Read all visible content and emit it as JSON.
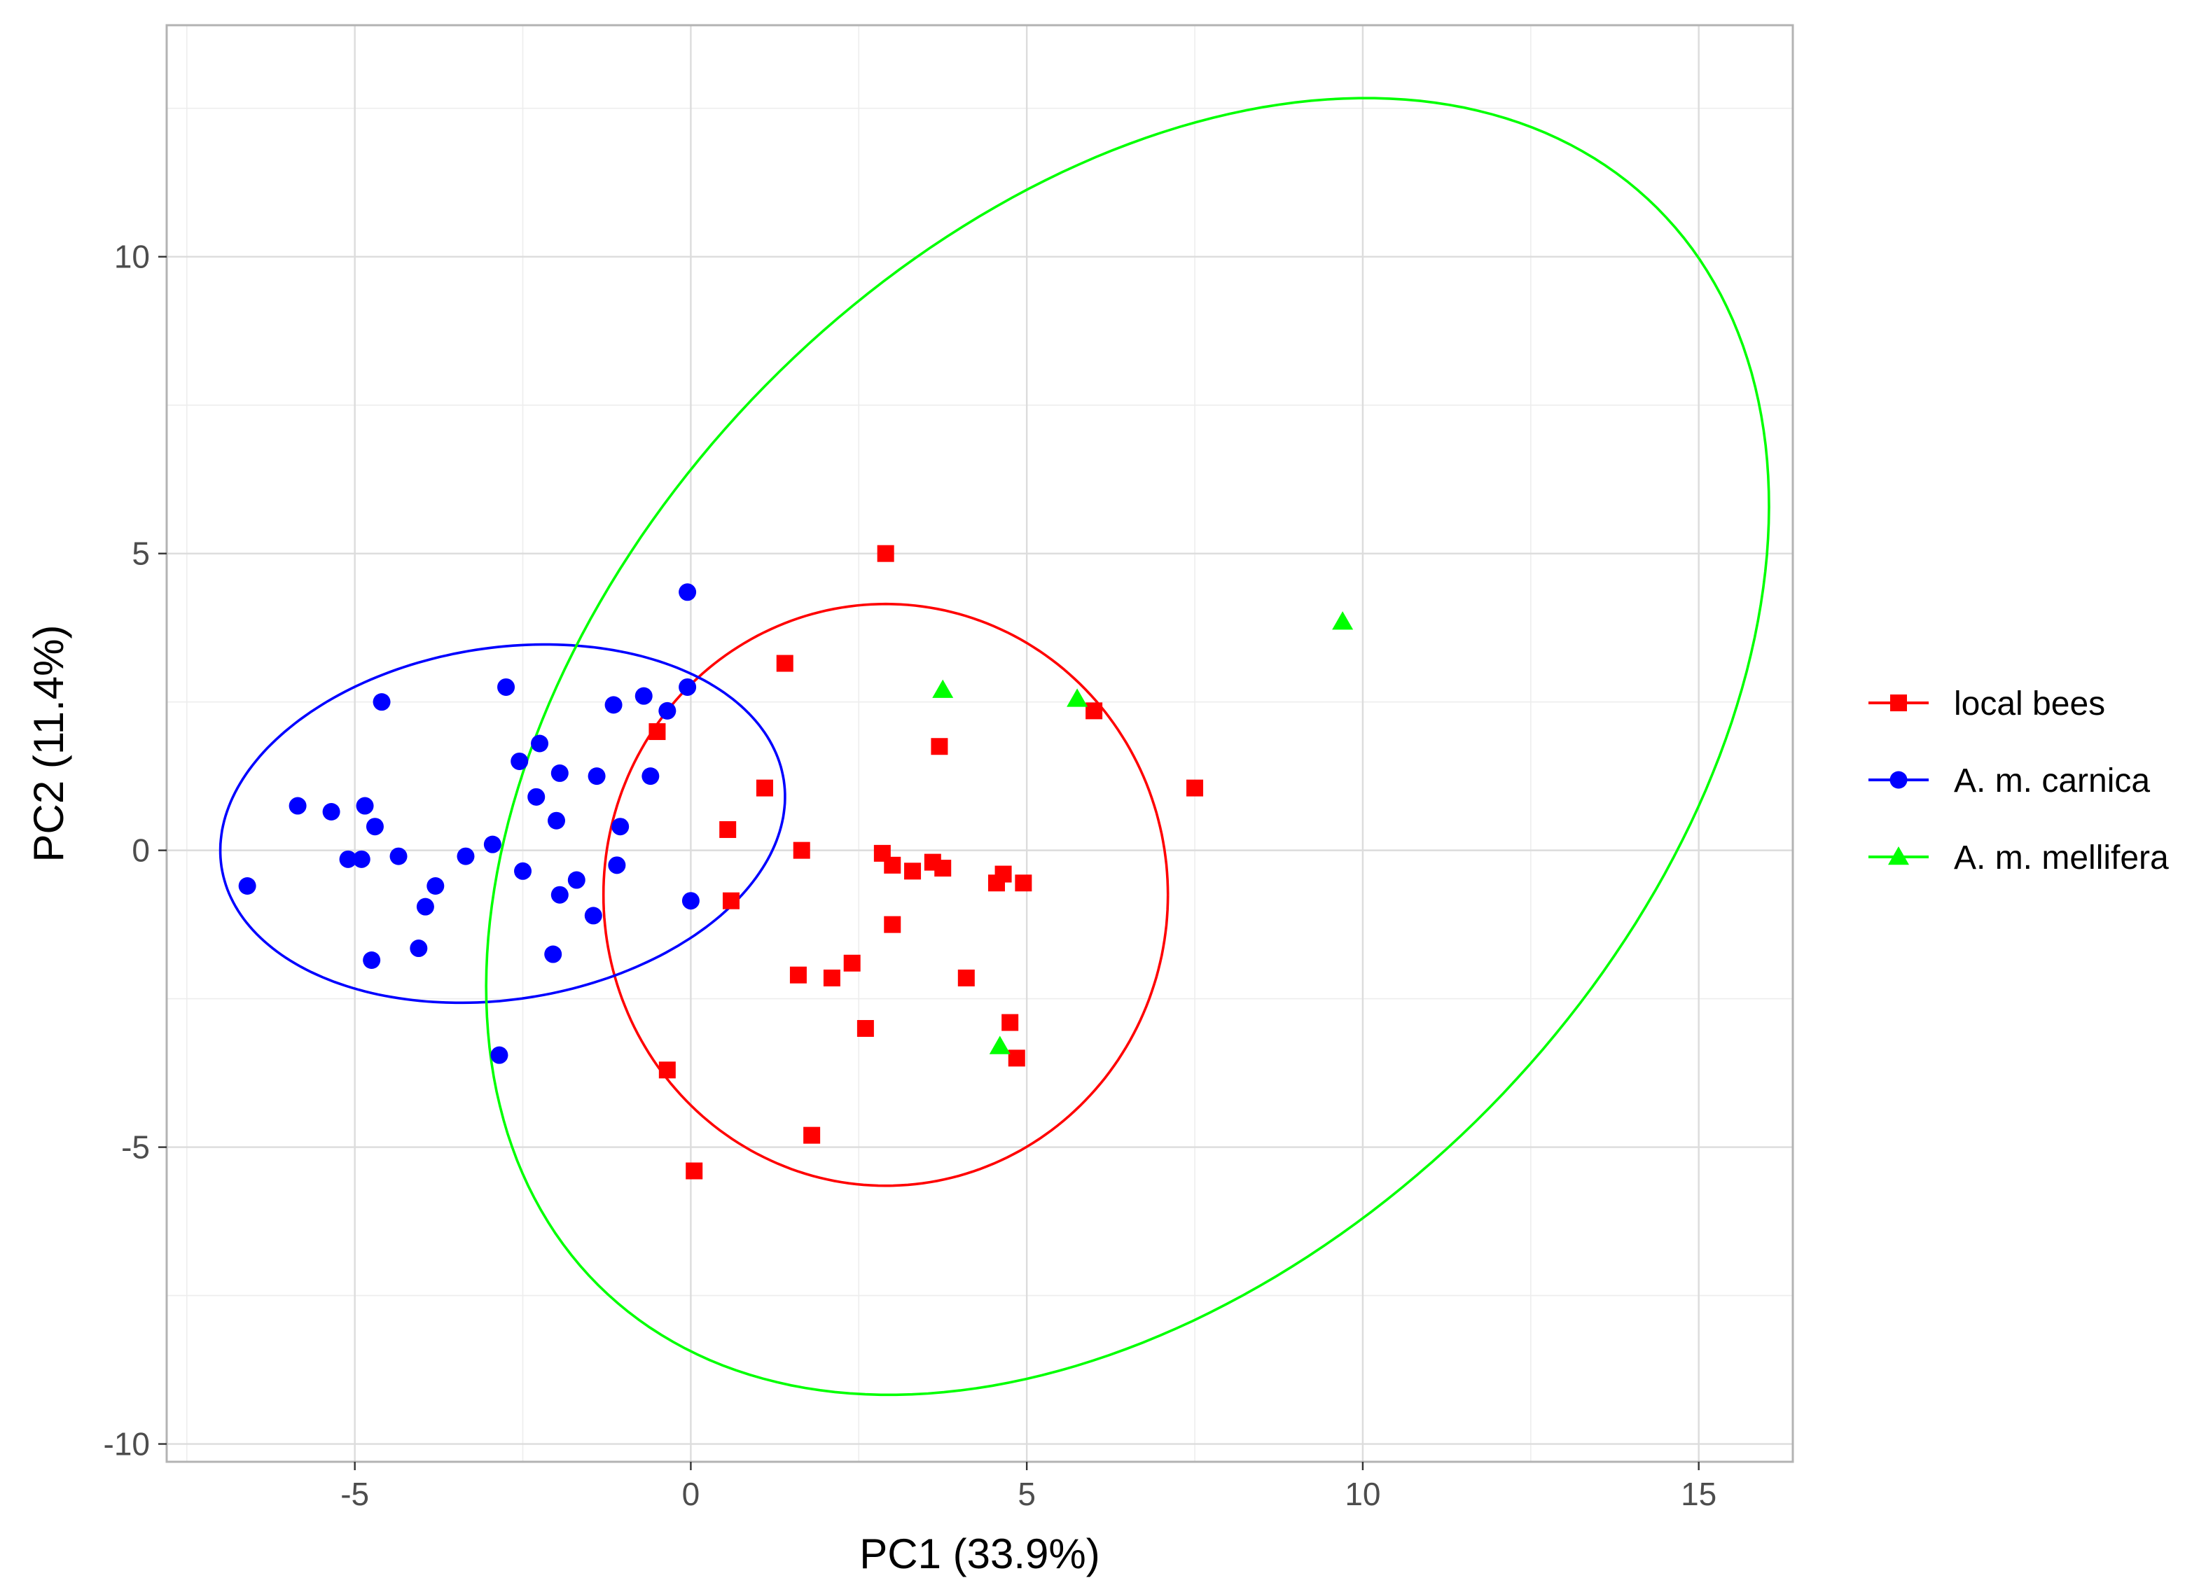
{
  "chart_data": {
    "type": "scatter",
    "title": "",
    "xlabel": "PC1 (33.9%)",
    "ylabel": "PC2 (11.4%)",
    "xlim": [
      -7.8,
      16.4
    ],
    "ylim": [
      -10.3,
      13.9
    ],
    "x_ticks": [
      -5,
      0,
      5,
      10,
      15
    ],
    "y_ticks": [
      -10,
      -5,
      0,
      5,
      10
    ],
    "x_tick_labels": [
      "-5",
      "0",
      "5",
      "10",
      "15"
    ],
    "y_tick_labels": [
      "-10",
      "-5",
      "0",
      "5",
      "10"
    ],
    "grid": true,
    "legend_position": "right",
    "series": [
      {
        "name": "local bees",
        "color": "#FF0000",
        "marker": "square",
        "points": [
          [
            2.9,
            5.0
          ],
          [
            1.4,
            3.15
          ],
          [
            -0.5,
            2.0
          ],
          [
            3.7,
            1.75
          ],
          [
            6.0,
            2.35
          ],
          [
            1.1,
            1.05
          ],
          [
            7.5,
            1.05
          ],
          [
            0.55,
            0.35
          ],
          [
            1.65,
            0.0
          ],
          [
            2.85,
            -0.05
          ],
          [
            3.0,
            -0.25
          ],
          [
            3.6,
            -0.2
          ],
          [
            3.3,
            -0.35
          ],
          [
            3.75,
            -0.3
          ],
          [
            4.65,
            -0.4
          ],
          [
            4.55,
            -0.55
          ],
          [
            4.95,
            -0.55
          ],
          [
            0.6,
            -0.85
          ],
          [
            3.0,
            -1.25
          ],
          [
            1.6,
            -2.1
          ],
          [
            2.1,
            -2.15
          ],
          [
            2.4,
            -1.9
          ],
          [
            4.1,
            -2.15
          ],
          [
            2.6,
            -3.0
          ],
          [
            4.75,
            -2.9
          ],
          [
            4.85,
            -3.5
          ],
          [
            -0.35,
            -3.7
          ],
          [
            1.8,
            -4.8
          ],
          [
            0.05,
            -5.4
          ]
        ]
      },
      {
        "name": "A. m. carnica",
        "color": "#0000FF",
        "marker": "circle",
        "points": [
          [
            -0.05,
            4.35
          ],
          [
            -2.75,
            2.75
          ],
          [
            -0.05,
            2.75
          ],
          [
            -0.7,
            2.6
          ],
          [
            -1.15,
            2.45
          ],
          [
            -0.35,
            2.35
          ],
          [
            -4.6,
            2.5
          ],
          [
            -2.25,
            1.8
          ],
          [
            -2.55,
            1.5
          ],
          [
            -1.95,
            1.3
          ],
          [
            -1.4,
            1.25
          ],
          [
            -0.6,
            1.25
          ],
          [
            -2.3,
            0.9
          ],
          [
            -5.85,
            0.75
          ],
          [
            -5.35,
            0.65
          ],
          [
            -4.85,
            0.75
          ],
          [
            -2.0,
            0.5
          ],
          [
            -4.7,
            0.4
          ],
          [
            -1.05,
            0.4
          ],
          [
            -2.95,
            0.1
          ],
          [
            -5.1,
            -0.15
          ],
          [
            -4.9,
            -0.15
          ],
          [
            -4.35,
            -0.1
          ],
          [
            -3.35,
            -0.1
          ],
          [
            -1.1,
            -0.25
          ],
          [
            -2.5,
            -0.35
          ],
          [
            -3.8,
            -0.6
          ],
          [
            -1.7,
            -0.5
          ],
          [
            -6.6,
            -0.6
          ],
          [
            -1.95,
            -0.75
          ],
          [
            0.0,
            -0.85
          ],
          [
            -3.95,
            -0.95
          ],
          [
            -1.45,
            -1.1
          ],
          [
            -4.05,
            -1.65
          ],
          [
            -2.05,
            -1.75
          ],
          [
            -4.75,
            -1.85
          ],
          [
            -2.85,
            -3.45
          ]
        ]
      },
      {
        "name": "A. m. mellifera",
        "color": "#00FF00",
        "marker": "triangle",
        "points": [
          [
            9.7,
            3.85
          ],
          [
            3.75,
            2.7
          ],
          [
            5.75,
            2.55
          ],
          [
            4.6,
            -3.3
          ]
        ]
      }
    ],
    "ellipses": [
      {
        "series": "local bees",
        "color": "#FF0000",
        "center": [
          2.9,
          -0.75
        ],
        "semi_axes": [
          4.2,
          4.9
        ],
        "rotation_deg": 0
      },
      {
        "series": "A. m. carnica",
        "color": "#0000FF",
        "center": [
          -2.8,
          0.45
        ],
        "semi_axes": [
          4.25,
          2.95
        ],
        "rotation_deg": 12
      },
      {
        "series": "A. m. mellifera",
        "color": "#00FF00",
        "center": [
          6.5,
          1.75
        ],
        "semi_axes": [
          12.1,
          8.0
        ],
        "rotation_deg": 55
      }
    ]
  }
}
